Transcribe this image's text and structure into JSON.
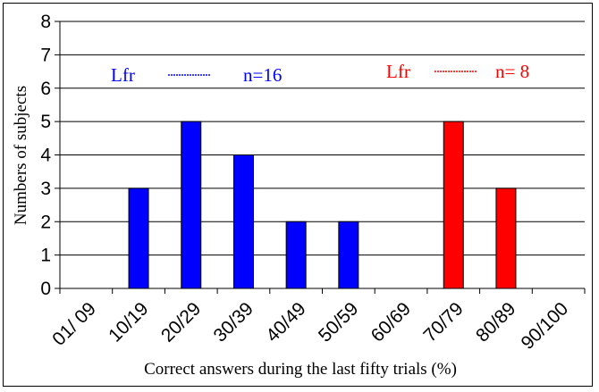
{
  "chart_data": {
    "type": "bar",
    "title": "",
    "xlabel": "Correct answers during the last fifty trials (%)",
    "ylabel": "Numbers of subjects",
    "ylim": [
      0,
      8
    ],
    "yticks": [
      0,
      1,
      2,
      3,
      4,
      5,
      6,
      7,
      8
    ],
    "grid": true,
    "categories": [
      "01/ 09",
      "10/19",
      "20/29",
      "30/39",
      "40/49",
      "50/59",
      "60/69",
      "70/79",
      "80/89",
      "90/100"
    ],
    "series": [
      {
        "name": "Lfr",
        "n_label": "n=16",
        "color": "#0000ff",
        "values": [
          0,
          3,
          5,
          4,
          2,
          2,
          0,
          0,
          0,
          0
        ]
      },
      {
        "name": "Lfr",
        "n_label": "n= 8",
        "color": "#ff0000",
        "values": [
          0,
          0,
          0,
          0,
          0,
          0,
          0,
          5,
          3,
          0
        ]
      }
    ]
  }
}
